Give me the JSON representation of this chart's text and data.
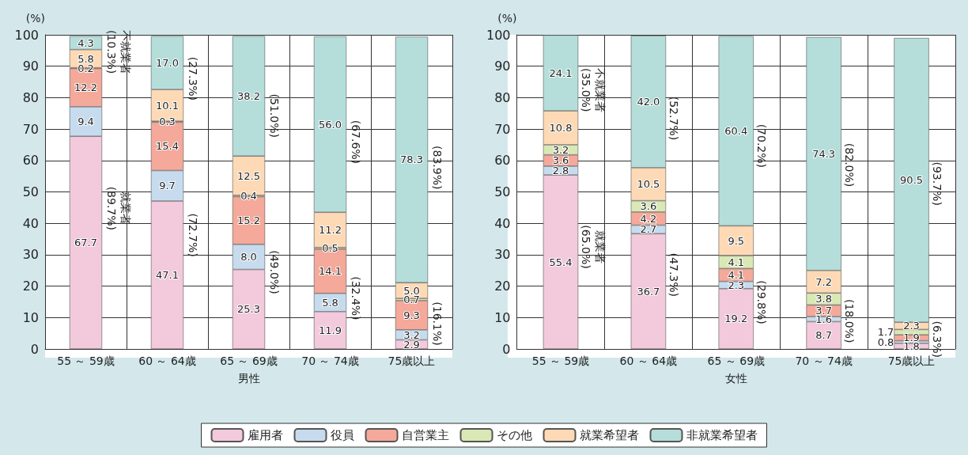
{
  "chart_data": [
    {
      "type": "bar",
      "stacked": true,
      "grid": true,
      "xlabel": "男性",
      "ylabel": "(%)",
      "legend": "bottom",
      "categories": [
        "55 ～ 59歳",
        "60 ～ 64歳",
        "65 ～ 69歳",
        "70 ～ 74歳",
        "75歳以上"
      ],
      "ylim": [
        0,
        100
      ],
      "yticks": [
        0,
        10,
        20,
        30,
        40,
        50,
        60,
        70,
        80,
        90,
        100
      ],
      "series": [
        {
          "name": "雇用者",
          "color": "#f3c9dc",
          "values": [
            67.7,
            47.1,
            25.3,
            11.9,
            2.9
          ],
          "value_labels": [
            "67.7",
            "47.1",
            "25.3",
            "11.9",
            "2.9"
          ]
        },
        {
          "name": "役員",
          "color": "#c6dcee",
          "values": [
            9.4,
            9.7,
            8.0,
            5.8,
            3.2
          ],
          "value_labels": [
            "9.4",
            "9.7",
            "8.0",
            "5.8",
            "3.2"
          ]
        },
        {
          "name": "自営業主",
          "color": "#f4a99a",
          "values": [
            12.2,
            15.4,
            15.2,
            14.1,
            9.3
          ],
          "value_labels": [
            "12.2",
            "15.4",
            "15.2",
            "14.1",
            "9.3"
          ]
        },
        {
          "name": "その他",
          "color": "#d9e8b5",
          "values": [
            0.2,
            0.3,
            0.4,
            0.5,
            0.7
          ],
          "value_labels": [
            "0.2",
            "0.3",
            "0.4",
            "0.5",
            "0.7"
          ]
        },
        {
          "name": "就業希望者",
          "color": "#fdd9b5",
          "values": [
            5.8,
            10.1,
            12.5,
            11.2,
            5.0
          ],
          "value_labels": [
            "5.8",
            "10.1",
            "12.5",
            "11.2",
            "5.0"
          ]
        },
        {
          "name": "非就業希望者",
          "color": "#b5dedb",
          "values": [
            4.3,
            17.0,
            38.2,
            56.0,
            78.3
          ],
          "value_labels": [
            "4.3",
            "17.0",
            "38.2",
            "56.0",
            "78.3"
          ]
        }
      ],
      "annotations": [
        "(89.7%)",
        "就業者",
        "(10.3%)",
        "不就業者",
        "(72.7%)",
        "(27.3%)",
        "(49.0%)",
        "(51.0%)",
        "(32.4%)",
        "(67.6%)",
        "(16.1%)",
        "(83.9%)"
      ]
    },
    {
      "type": "bar",
      "stacked": true,
      "grid": true,
      "xlabel": "女性",
      "ylabel": "(%)",
      "categories": [
        "55 ～ 59歳",
        "60 ～ 64歳",
        "65 ～ 69歳",
        "70 ～ 74歳",
        "75歳以上"
      ],
      "ylim": [
        0,
        100
      ],
      "yticks": [
        0,
        10,
        20,
        30,
        40,
        50,
        60,
        70,
        80,
        90,
        100
      ],
      "series": [
        {
          "color": "#f3c9dc",
          "values": [
            55.4,
            36.7,
            19.2,
            8.7,
            1.8
          ],
          "value_labels": [
            "55.4",
            "36.7",
            "19.2",
            "8.7",
            "1.8"
          ]
        },
        {
          "color": "#c6dcee",
          "values": [
            2.8,
            2.7,
            2.3,
            1.6,
            0.8
          ],
          "value_labels": [
            "2.8",
            "2.7",
            "2.3",
            "1.6",
            "0.8"
          ]
        },
        {
          "color": "#f4a99a",
          "values": [
            3.6,
            4.2,
            4.1,
            3.7,
            1.9
          ],
          "value_labels": [
            "3.6",
            "4.2",
            "4.1",
            "3.7",
            "1.9"
          ]
        },
        {
          "color": "#d9e8b5",
          "values": [
            3.2,
            3.6,
            4.1,
            3.8,
            1.7
          ],
          "value_labels": [
            "3.2",
            "3.6",
            "4.1",
            "3.8",
            "1.7"
          ]
        },
        {
          "color": "#fdd9b5",
          "values": [
            10.8,
            10.5,
            9.5,
            7.2,
            2.3
          ],
          "value_labels": [
            "10.8",
            "10.5",
            "9.5",
            "7.2",
            "2.3"
          ]
        },
        {
          "color": "#b5dedb",
          "values": [
            24.1,
            42.0,
            60.4,
            74.3,
            90.5
          ],
          "value_labels": [
            "24.1",
            "42.0",
            "60.4",
            "74.3",
            "90.5"
          ]
        }
      ],
      "annotations": [
        "(65.0%)",
        "就業者",
        "(35.0%)",
        "不就業者",
        "(47.3%)",
        "(52.7%)",
        "(29.8%)",
        "(70.2%)",
        "(18.0%)",
        "(82.0%)",
        "(6.3%)",
        "(93.7%)"
      ]
    }
  ]
}
